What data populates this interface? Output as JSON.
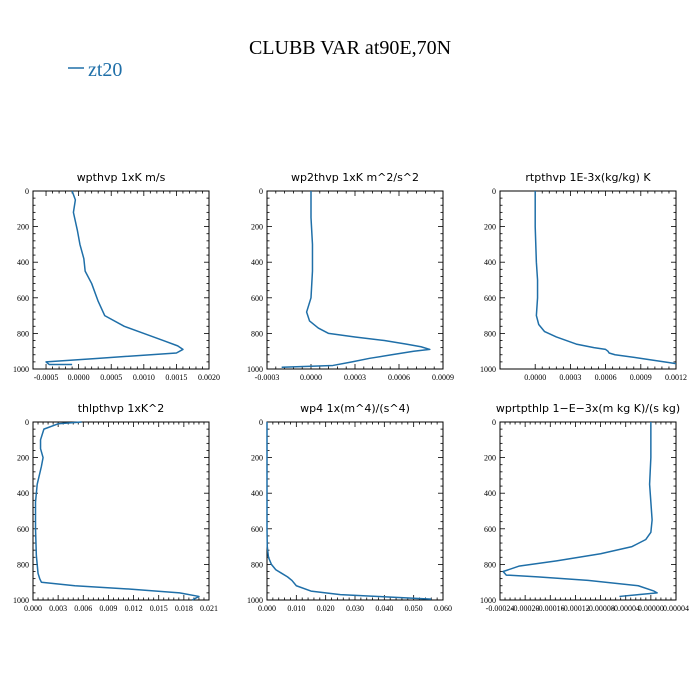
{
  "title": "CLUBB VAR at90E,70N",
  "legend": {
    "label": "zt20",
    "color": "#1f6fa8"
  },
  "chart_data": [
    {
      "type": "line",
      "title": "wpthvp   1xK m/s",
      "xlim": [
        -0.0007,
        0.002
      ],
      "ylim": [
        1000,
        0
      ],
      "xticks": [
        "-0.0005",
        "0.0000",
        "0.0005",
        "0.0010",
        "0.0015",
        "0.0020"
      ],
      "xtick_values": [
        -0.0005,
        0,
        0.0005,
        0.001,
        0.0015,
        0.002
      ],
      "yticks": [
        "0",
        "200",
        "400",
        "600",
        "800",
        "1000"
      ],
      "ytick_values": [
        0,
        200,
        400,
        600,
        800,
        1000
      ],
      "series": [
        {
          "x": [
            -0.0001,
            -5e-05,
            -8e-05,
            -2e-05,
            2e-05,
            8e-05,
            0.0001,
            0.0002,
            0.0003,
            0.0004,
            0.0007,
            0.001,
            0.0013,
            0.00152,
            0.0016,
            0.0015,
            0.0003,
            -0.0005,
            -0.00045,
            -0.0001
          ],
          "y": [
            0,
            50,
            120,
            220,
            300,
            380,
            450,
            520,
            620,
            700,
            760,
            800,
            840,
            870,
            890,
            910,
            940,
            960,
            975,
            975
          ]
        }
      ]
    },
    {
      "type": "line",
      "title": "wp2thvp   1xK m^2/s^2",
      "xlim": [
        -0.0003,
        0.0009
      ],
      "ylim": [
        1000,
        0
      ],
      "xticks": [
        "-0.0003",
        "0.0000",
        "0.0003",
        "0.0006",
        "0.0009"
      ],
      "xtick_values": [
        -0.0003,
        0,
        0.0003,
        0.0006,
        0.0009
      ],
      "yticks": [
        "0",
        "200",
        "400",
        "600",
        "800",
        "1000"
      ],
      "ytick_values": [
        0,
        200,
        400,
        600,
        800,
        1000
      ],
      "series": [
        {
          "x": [
            0,
            0,
            1e-05,
            1e-05,
            0,
            -3e-05,
            -1e-05,
            5e-05,
            0.00012,
            0.0003,
            0.0005,
            0.00065,
            0.00075,
            0.00081,
            0.0007,
            0.00055,
            0.0004,
            0.00028,
            0.00015,
            -0.0002
          ],
          "y": [
            0,
            150,
            300,
            450,
            600,
            680,
            730,
            770,
            800,
            820,
            840,
            860,
            875,
            890,
            900,
            920,
            940,
            960,
            980,
            990
          ]
        }
      ]
    },
    {
      "type": "line",
      "title": "rtpthvp   1E-3x(kg/kg) K",
      "xlim": [
        -0.0003,
        0.0012
      ],
      "ylim": [
        1000,
        0
      ],
      "xticks": [
        "0.0000",
        "0.0003",
        "0.0006",
        "0.0009",
        "0.0012"
      ],
      "xtick_values": [
        0,
        0.0003,
        0.0006,
        0.0009,
        0.0012
      ],
      "yticks": [
        "0",
        "200",
        "400",
        "600",
        "800",
        "1000"
      ],
      "ytick_values": [
        0,
        200,
        400,
        600,
        800,
        1000
      ],
      "series": [
        {
          "x": [
            0,
            0,
            1e-05,
            2e-05,
            2e-05,
            1e-05,
            3e-05,
            8e-05,
            0.00018,
            0.00035,
            0.0005,
            0.0006,
            0.00062,
            0.00063,
            0.00068,
            0.0009,
            0.0011,
            0.0012
          ],
          "y": [
            0,
            200,
            400,
            500,
            600,
            700,
            750,
            790,
            820,
            860,
            880,
            890,
            900,
            910,
            920,
            940,
            960,
            970
          ]
        }
      ]
    },
    {
      "type": "line",
      "title": "thlpthvp   1xK^2",
      "xlim": [
        0,
        0.021
      ],
      "ylim": [
        1000,
        0
      ],
      "xticks": [
        "0.000",
        "0.003",
        "0.006",
        "0.009",
        "0.012",
        "0.015",
        "0.018",
        "0.021"
      ],
      "xtick_values": [
        0,
        0.003,
        0.006,
        0.009,
        0.012,
        0.015,
        0.018,
        0.021
      ],
      "yticks": [
        "0",
        "200",
        "400",
        "600",
        "800",
        "1000"
      ],
      "ytick_values": [
        0,
        200,
        400,
        600,
        800,
        1000
      ],
      "series": [
        {
          "x": [
            0.0058,
            0.003,
            0.0013,
            0.0009,
            0.0009,
            0.0012,
            0.001,
            0.0005,
            0.0003,
            0.0003,
            0.0004,
            0.0006,
            0.0008,
            0.001,
            0.005,
            0.012,
            0.0175,
            0.0198,
            0.019
          ],
          "y": [
            0,
            10,
            40,
            100,
            150,
            200,
            250,
            350,
            450,
            600,
            750,
            850,
            880,
            900,
            920,
            940,
            960,
            980,
            1000
          ]
        }
      ]
    },
    {
      "type": "line",
      "title": "wp4   1x(m^4)/(s^4)",
      "xlim": [
        0,
        0.06
      ],
      "ylim": [
        1000,
        0
      ],
      "xticks": [
        "0.000",
        "0.010",
        "0.020",
        "0.030",
        "0.040",
        "0.050",
        "0.060"
      ],
      "xtick_values": [
        0,
        0.01,
        0.02,
        0.03,
        0.04,
        0.05,
        0.06
      ],
      "yticks": [
        "0",
        "200",
        "400",
        "600",
        "800",
        "1000"
      ],
      "ytick_values": [
        0,
        200,
        400,
        600,
        800,
        1000
      ],
      "series": [
        {
          "x": [
            0,
            0,
            0.0001,
            0.0005,
            0.0015,
            0.003,
            0.005,
            0.007,
            0.0085,
            0.01,
            0.015,
            0.025,
            0.038,
            0.05,
            0.056
          ],
          "y": [
            0,
            600,
            700,
            760,
            800,
            830,
            850,
            870,
            890,
            920,
            950,
            970,
            980,
            990,
            995
          ]
        }
      ]
    },
    {
      "type": "line",
      "title": "wprtpthlp   1−E−3x(m kg K)/(s kg)",
      "xlim": [
        -0.00024,
        4e-05
      ],
      "ylim": [
        1000,
        0
      ],
      "xticks": [
        "-0.00024",
        "-0.00020",
        "-0.00016",
        "-0.00012",
        "-0.00008",
        "-0.00004",
        "0.00000",
        "0.00004"
      ],
      "xtick_values": [
        -0.00024,
        -0.0002,
        -0.00016,
        -0.00012,
        -8e-05,
        -4e-05,
        0,
        4e-05
      ],
      "yticks": [
        "0",
        "200",
        "400",
        "600",
        "800",
        "1000"
      ],
      "ytick_values": [
        0,
        200,
        400,
        600,
        800,
        1000
      ],
      "series": [
        {
          "x": [
            0,
            0,
            -2e-06,
            0,
            2e-06,
            0,
            -8e-06,
            -3e-05,
            -8e-05,
            -0.00015,
            -0.00021,
            -0.000235,
            -0.00023,
            -0.00018,
            -0.0001,
            -2e-05,
            5e-06,
            1e-05,
            -2e-05,
            -5e-05
          ],
          "y": [
            0,
            200,
            350,
            450,
            550,
            620,
            660,
            700,
            740,
            780,
            810,
            840,
            860,
            870,
            890,
            920,
            950,
            960,
            970,
            980
          ]
        }
      ]
    }
  ]
}
